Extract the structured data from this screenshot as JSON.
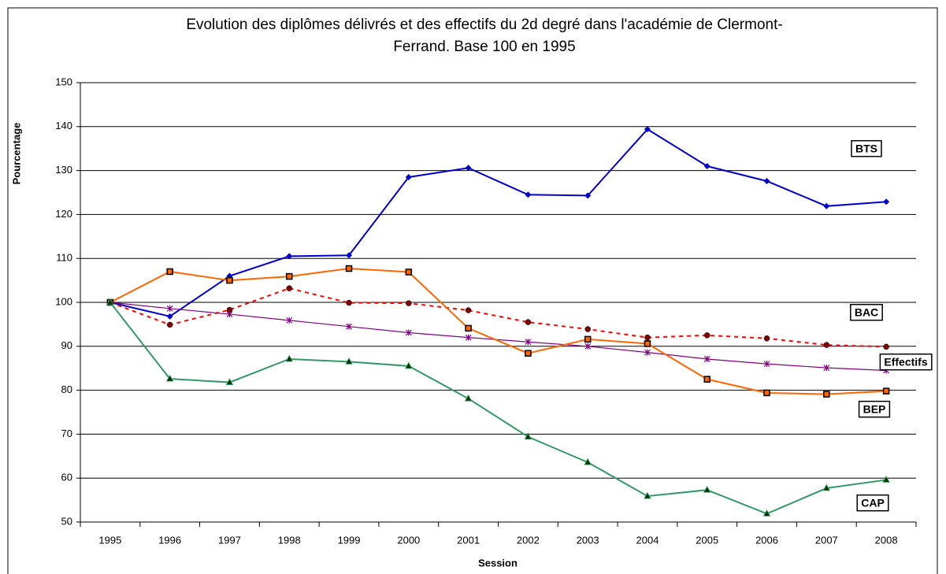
{
  "chart_data": {
    "type": "line",
    "title": [
      "Evolution des diplômes délivrés et des effectifs du 2d degré dans l'académie de Clermont-",
      "Ferrand.   Base 100 en 1995"
    ],
    "x_label": "Session",
    "y_label": "Pourcentage",
    "categories": [
      "1995",
      "1996",
      "1997",
      "1998",
      "1999",
      "2000",
      "2001",
      "2002",
      "2003",
      "2004",
      "2005",
      "2006",
      "2007",
      "2008"
    ],
    "ylim": [
      50,
      150
    ],
    "yticks": [
      50,
      60,
      70,
      80,
      90,
      100,
      110,
      120,
      130,
      140,
      150
    ],
    "grid": true,
    "series": [
      {
        "name": "BTS",
        "color": "#0000cc",
        "marker": "diamond",
        "dashed": false,
        "values": [
          100,
          96.8,
          106,
          110.5,
          110.7,
          128.5,
          130.6,
          124.5,
          124.3,
          139.4,
          131,
          127.6,
          121.9,
          122.9
        ]
      },
      {
        "name": "BAC",
        "color": "#ff0000",
        "marker": "circle",
        "dashed": true,
        "values": [
          100,
          94.9,
          98.3,
          103.2,
          99.9,
          99.8,
          98.2,
          95.5,
          93.9,
          92,
          92.5,
          91.8,
          90.3,
          89.9
        ]
      },
      {
        "name": "Effectifs",
        "color": "#800080",
        "marker": "star",
        "dashed": false,
        "values": [
          100,
          98.6,
          97.3,
          95.9,
          94.5,
          93.1,
          92,
          91,
          90,
          88.6,
          87.1,
          86,
          85.1,
          84.5
        ]
      },
      {
        "name": "BEP",
        "color": "#ff6600",
        "marker": "square",
        "dashed": false,
        "values": [
          100,
          107,
          105,
          105.9,
          107.7,
          106.9,
          94.1,
          88.4,
          91.6,
          90.6,
          82.5,
          79.4,
          79.1,
          79.8
        ]
      },
      {
        "name": "CAP",
        "color": "#339966",
        "marker": "triangle",
        "dashed": false,
        "values": [
          100,
          82.6,
          81.8,
          87.1,
          86.5,
          85.5,
          78.1,
          69.4,
          63.6,
          55.9,
          57.3,
          51.9,
          57.7,
          59.6
        ]
      }
    ]
  }
}
